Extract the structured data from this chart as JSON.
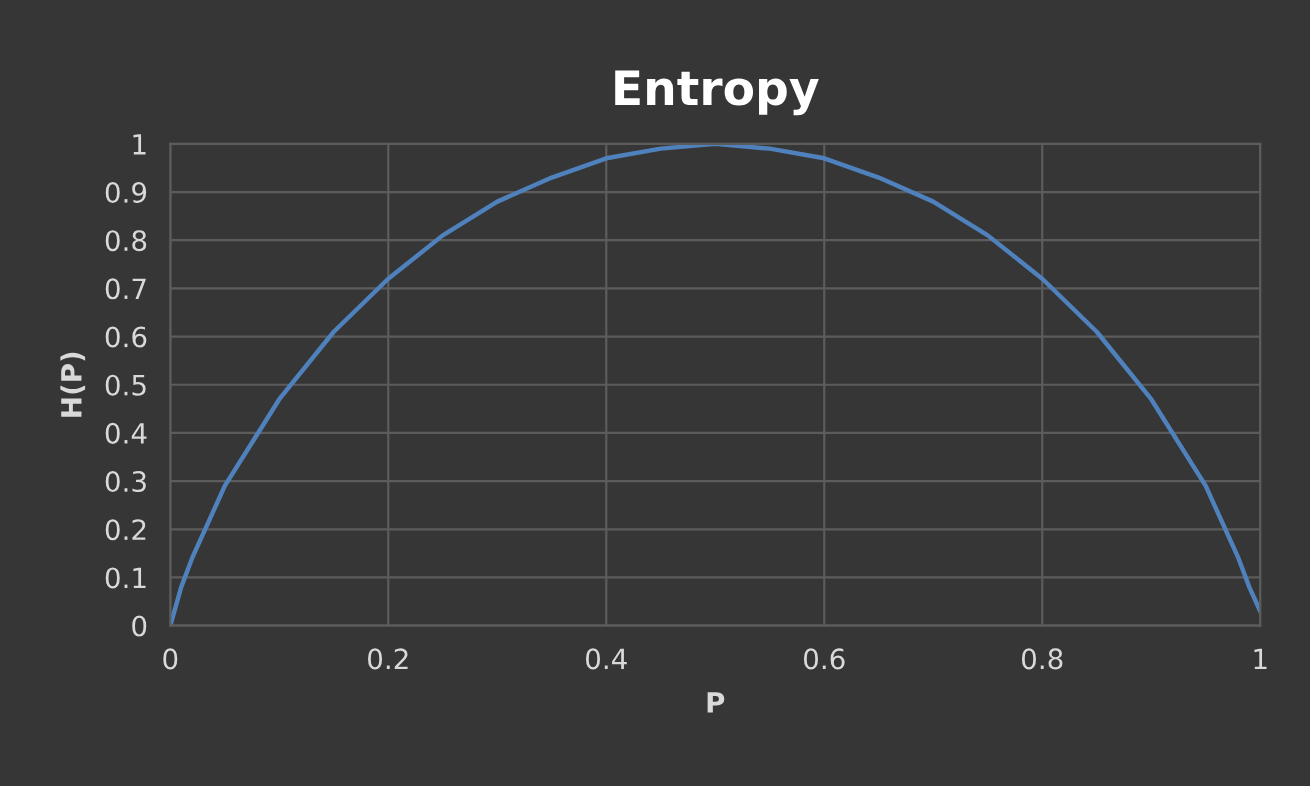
{
  "chart_data": {
    "type": "line",
    "title": "Entropy",
    "xlabel": "P",
    "ylabel": "H(P)",
    "series": [
      {
        "color": "#4f81bd",
        "x": [
          0,
          0.01,
          0.02,
          0.05,
          0.1,
          0.15,
          0.2,
          0.25,
          0.3,
          0.35,
          0.4,
          0.45,
          0.5,
          0.55,
          0.6,
          0.65,
          0.7,
          0.75,
          0.8,
          0.85,
          0.9,
          0.95,
          0.98,
          0.99,
          1
        ],
        "values": [
          0,
          0.08,
          0.14,
          0.29,
          0.47,
          0.61,
          0.72,
          0.81,
          0.88,
          0.93,
          0.97,
          0.99,
          1,
          0.99,
          0.97,
          0.93,
          0.88,
          0.81,
          0.72,
          0.61,
          0.47,
          0.29,
          0.14,
          0.08,
          0.03
        ]
      }
    ],
    "xlim": [
      0,
      1
    ],
    "xticks": [
      0,
      0.2,
      0.4,
      0.6,
      0.8,
      1
    ],
    "ylim": [
      0,
      1
    ],
    "yticks": [
      0,
      0.1,
      0.2,
      0.3,
      0.4,
      0.5,
      0.6,
      0.7,
      0.8,
      0.9,
      1
    ],
    "grid": true,
    "marker": "none",
    "line_style": "solid"
  }
}
